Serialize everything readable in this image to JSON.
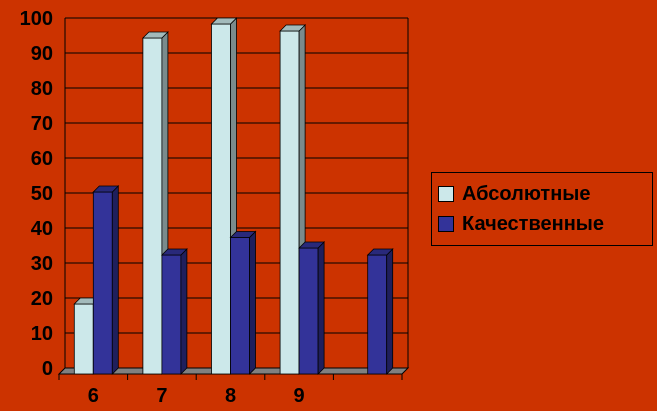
{
  "chart_data": {
    "type": "bar",
    "categories": [
      "6",
      "7",
      "8",
      "9",
      ""
    ],
    "series": [
      {
        "name": "Абсолютные",
        "values": [
          20,
          96,
          100,
          98,
          null
        ],
        "color": "#cce8ea"
      },
      {
        "name": "Качественные",
        "values": [
          52,
          34,
          39,
          36,
          34
        ],
        "color": "#333399"
      }
    ],
    "yticks": [
      "0",
      "10",
      "20",
      "30",
      "40",
      "50",
      "60",
      "70",
      "80",
      "90",
      "100"
    ],
    "ylim": [
      0,
      100
    ],
    "title": "",
    "xlabel": "",
    "ylabel": "",
    "grid": true,
    "legend_position": "right",
    "colors": {
      "background": "#cc3300",
      "floor": "#808080",
      "grid": "#000000"
    }
  }
}
